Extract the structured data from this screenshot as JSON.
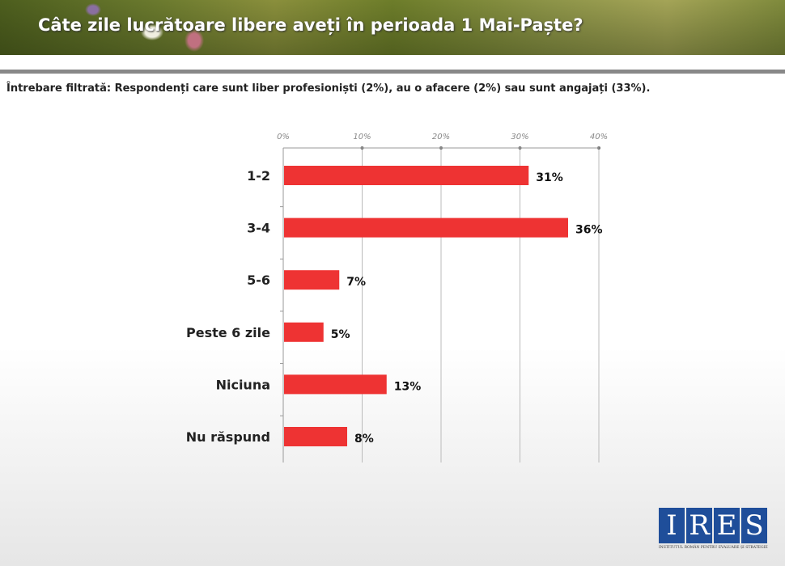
{
  "header": {
    "title": "Câte zile lucrătoare libere aveți în perioada 1 Mai-Paște?"
  },
  "subtitle": "Întrebare filtrată: Respondenți care sunt liber profesioniști (2%), au o afacere (2%) sau sunt angajați (33%).",
  "logo": {
    "letters": [
      "I",
      "R",
      "E",
      "S"
    ],
    "tagline": "INSTITUTUL ROMÂN PENTRU EVALUARE ȘI STRATEGIE"
  },
  "colors": {
    "bar": "#ee3333",
    "axis": "#999999"
  },
  "chart_data": {
    "type": "bar",
    "orientation": "horizontal",
    "categories": [
      "1-2",
      "3-4",
      "5-6",
      "Peste 6 zile",
      "Niciuna",
      "Nu răspund"
    ],
    "values": [
      31,
      36,
      7,
      5,
      13,
      8
    ],
    "data_labels": [
      "31%",
      "36%",
      "7%",
      "5%",
      "13%",
      "8%"
    ],
    "xticks": [
      "0%",
      "10%",
      "20%",
      "30%",
      "40%"
    ],
    "xlim": [
      0,
      40
    ],
    "title": "Câte zile lucrătoare libere aveți în perioada 1 Mai-Paște?",
    "xlabel": "",
    "ylabel": "",
    "axis_position": "top",
    "grid": true
  }
}
